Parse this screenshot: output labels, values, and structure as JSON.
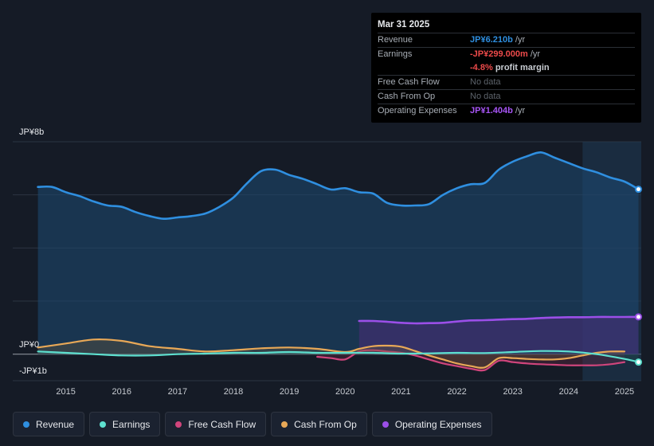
{
  "tooltip": {
    "date": "Mar 31 2025",
    "revenue_label": "Revenue",
    "revenue_value": "JP¥6.210b",
    "earnings_label": "Earnings",
    "earnings_value": "-JP¥299.000m",
    "margin_value": "-4.8%",
    "margin_text": "profit margin",
    "fcf_label": "Free Cash Flow",
    "fcf_value": "No data",
    "cfo_label": "Cash From Op",
    "cfo_value": "No data",
    "opex_label": "Operating Expenses",
    "opex_value": "JP¥1.404b",
    "unit": "/yr"
  },
  "legend": [
    {
      "label": "Revenue",
      "color": "#2f8fe0"
    },
    {
      "label": "Earnings",
      "color": "#5ee0cf"
    },
    {
      "label": "Free Cash Flow",
      "color": "#d0457c"
    },
    {
      "label": "Cash From Op",
      "color": "#e8a857"
    },
    {
      "label": "Operating Expenses",
      "color": "#9b4fe8"
    }
  ],
  "chart_data": {
    "type": "line",
    "title": "",
    "units": "JP¥ billions",
    "ylim": [
      -1,
      8
    ],
    "y_tick_labels": [
      "JP¥8b",
      "JP¥0",
      "-JP¥1b"
    ],
    "x_tick_labels": [
      "2015",
      "2016",
      "2017",
      "2018",
      "2019",
      "2020",
      "2021",
      "2022",
      "2023",
      "2024",
      "2025"
    ],
    "forecast_shade_from": 2024.25,
    "series": [
      {
        "name": "Revenue",
        "color": "#2f8fe0",
        "x": [
          2014.5,
          2014.75,
          2015.0,
          2015.25,
          2015.5,
          2015.75,
          2016.0,
          2016.25,
          2016.5,
          2016.75,
          2017.0,
          2017.25,
          2017.5,
          2017.75,
          2018.0,
          2018.25,
          2018.5,
          2018.75,
          2019.0,
          2019.25,
          2019.5,
          2019.75,
          2020.0,
          2020.25,
          2020.5,
          2020.75,
          2021.0,
          2021.25,
          2021.5,
          2021.75,
          2022.0,
          2022.25,
          2022.5,
          2022.75,
          2023.0,
          2023.25,
          2023.5,
          2023.75,
          2024.0,
          2024.25,
          2024.5,
          2024.75,
          2025.0,
          2025.25
        ],
        "values": [
          6.3,
          6.3,
          6.1,
          5.95,
          5.75,
          5.6,
          5.55,
          5.35,
          5.2,
          5.1,
          5.15,
          5.2,
          5.3,
          5.55,
          5.9,
          6.45,
          6.9,
          6.95,
          6.75,
          6.6,
          6.4,
          6.2,
          6.25,
          6.1,
          6.05,
          5.7,
          5.6,
          5.6,
          5.65,
          6.0,
          6.25,
          6.4,
          6.45,
          6.95,
          7.25,
          7.45,
          7.6,
          7.4,
          7.2,
          7.0,
          6.85,
          6.65,
          6.5,
          6.21
        ]
      },
      {
        "name": "Earnings",
        "color": "#5ee0cf",
        "x": [
          2014.5,
          2015.0,
          2015.5,
          2016.0,
          2016.5,
          2017.0,
          2017.5,
          2018.0,
          2018.5,
          2019.0,
          2019.5,
          2020.0,
          2020.5,
          2021.0,
          2021.5,
          2022.0,
          2022.5,
          2023.0,
          2023.5,
          2024.0,
          2024.5,
          2025.0,
          2025.25
        ],
        "values": [
          0.1,
          0.05,
          0.0,
          -0.05,
          -0.05,
          0.0,
          0.02,
          0.05,
          0.05,
          0.08,
          0.05,
          0.05,
          0.05,
          0.02,
          0.03,
          0.05,
          0.04,
          0.08,
          0.12,
          0.1,
          0.0,
          -0.18,
          -0.3
        ]
      },
      {
        "name": "Free Cash Flow",
        "color": "#d0457c",
        "x": [
          2019.5,
          2019.75,
          2020.0,
          2020.25,
          2020.5,
          2020.75,
          2021.0,
          2021.25,
          2021.5,
          2021.75,
          2022.0,
          2022.25,
          2022.5,
          2022.75,
          2023.0,
          2023.25,
          2023.5,
          2023.75,
          2024.0,
          2024.25,
          2024.5,
          2024.75,
          2025.0
        ],
        "values": [
          -0.1,
          -0.15,
          -0.2,
          0.1,
          0.15,
          0.1,
          0.05,
          -0.05,
          -0.2,
          -0.35,
          -0.45,
          -0.55,
          -0.6,
          -0.25,
          -0.3,
          -0.35,
          -0.38,
          -0.4,
          -0.42,
          -0.42,
          -0.42,
          -0.38,
          -0.3
        ]
      },
      {
        "name": "Cash From Op",
        "color": "#e8a857",
        "x": [
          2014.5,
          2015.0,
          2015.5,
          2016.0,
          2016.5,
          2017.0,
          2017.5,
          2018.0,
          2018.5,
          2019.0,
          2019.5,
          2020.0,
          2020.25,
          2020.5,
          2020.75,
          2021.0,
          2021.25,
          2021.5,
          2021.75,
          2022.0,
          2022.25,
          2022.5,
          2022.75,
          2023.0,
          2023.25,
          2023.5,
          2023.75,
          2024.0,
          2024.25,
          2024.5,
          2024.75,
          2025.0
        ],
        "values": [
          0.25,
          0.4,
          0.55,
          0.5,
          0.3,
          0.2,
          0.1,
          0.15,
          0.22,
          0.25,
          0.2,
          0.08,
          0.2,
          0.3,
          0.32,
          0.28,
          0.12,
          -0.05,
          -0.2,
          -0.35,
          -0.45,
          -0.5,
          -0.15,
          -0.15,
          -0.18,
          -0.2,
          -0.2,
          -0.15,
          -0.05,
          0.05,
          0.1,
          0.1
        ]
      },
      {
        "name": "Operating Expenses",
        "color": "#9b4fe8",
        "x": [
          2020.25,
          2020.5,
          2020.75,
          2021.0,
          2021.25,
          2021.5,
          2021.75,
          2022.0,
          2022.25,
          2022.5,
          2022.75,
          2023.0,
          2023.25,
          2023.5,
          2023.75,
          2024.0,
          2024.25,
          2024.5,
          2024.75,
          2025.0,
          2025.25
        ],
        "values": [
          1.25,
          1.25,
          1.22,
          1.18,
          1.16,
          1.17,
          1.18,
          1.23,
          1.27,
          1.28,
          1.3,
          1.32,
          1.33,
          1.36,
          1.38,
          1.39,
          1.39,
          1.4,
          1.4,
          1.4,
          1.404
        ]
      }
    ]
  }
}
